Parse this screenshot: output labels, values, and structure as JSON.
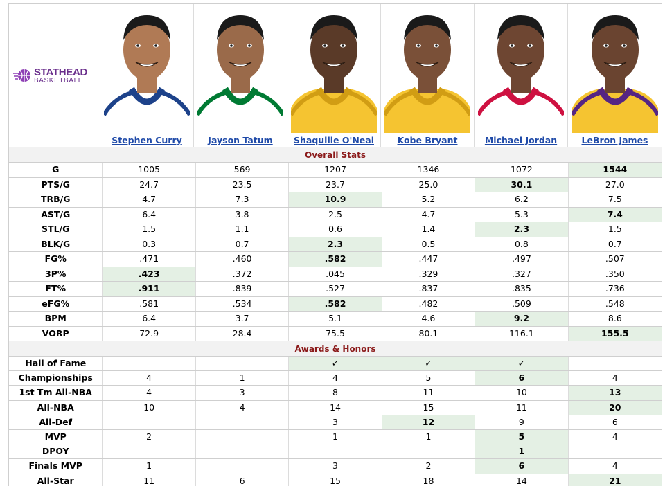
{
  "logo": {
    "top": "STATHEAD",
    "bottom": "BASKETBALL"
  },
  "players": [
    {
      "name": "Stephen Curry",
      "jersey": "#ffffff",
      "trim": "#1d428a",
      "skin": "#b07a55"
    },
    {
      "name": "Jayson Tatum",
      "jersey": "#ffffff",
      "trim": "#007a33",
      "skin": "#9a6a4a"
    },
    {
      "name": "Shaquille O'Neal",
      "jersey": "#f5c431",
      "trim": "#d19d14",
      "skin": "#5a3a28"
    },
    {
      "name": "Kobe Bryant",
      "jersey": "#f5c431",
      "trim": "#d19d14",
      "skin": "#7a5038"
    },
    {
      "name": "Michael Jordan",
      "jersey": "#ffffff",
      "trim": "#ce1141",
      "skin": "#6e4632"
    },
    {
      "name": "LeBron James",
      "jersey": "#f5c431",
      "trim": "#552583",
      "skin": "#6a4430"
    }
  ],
  "sections": [
    {
      "title": "Overall Stats",
      "rows": [
        {
          "label": "G",
          "values": [
            "1005",
            "569",
            "1207",
            "1346",
            "1072",
            "1544"
          ],
          "best": [
            5
          ]
        },
        {
          "label": "PTS/G",
          "values": [
            "24.7",
            "23.5",
            "23.7",
            "25.0",
            "30.1",
            "27.0"
          ],
          "best": [
            4
          ]
        },
        {
          "label": "TRB/G",
          "values": [
            "4.7",
            "7.3",
            "10.9",
            "5.2",
            "6.2",
            "7.5"
          ],
          "best": [
            2
          ]
        },
        {
          "label": "AST/G",
          "values": [
            "6.4",
            "3.8",
            "2.5",
            "4.7",
            "5.3",
            "7.4"
          ],
          "best": [
            5
          ]
        },
        {
          "label": "STL/G",
          "values": [
            "1.5",
            "1.1",
            "0.6",
            "1.4",
            "2.3",
            "1.5"
          ],
          "best": [
            4
          ]
        },
        {
          "label": "BLK/G",
          "values": [
            "0.3",
            "0.7",
            "2.3",
            "0.5",
            "0.8",
            "0.7"
          ],
          "best": [
            2
          ]
        },
        {
          "label": "FG%",
          "values": [
            ".471",
            ".460",
            ".582",
            ".447",
            ".497",
            ".507"
          ],
          "best": [
            2
          ]
        },
        {
          "label": "3P%",
          "values": [
            ".423",
            ".372",
            ".045",
            ".329",
            ".327",
            ".350"
          ],
          "best": [
            0
          ]
        },
        {
          "label": "FT%",
          "values": [
            ".911",
            ".839",
            ".527",
            ".837",
            ".835",
            ".736"
          ],
          "best": [
            0
          ]
        },
        {
          "label": "eFG%",
          "values": [
            ".581",
            ".534",
            ".582",
            ".482",
            ".509",
            ".548"
          ],
          "best": [
            2
          ]
        },
        {
          "label": "BPM",
          "values": [
            "6.4",
            "3.7",
            "5.1",
            "4.6",
            "9.2",
            "8.6"
          ],
          "best": [
            4
          ]
        },
        {
          "label": "VORP",
          "values": [
            "72.9",
            "28.4",
            "75.5",
            "80.1",
            "116.1",
            "155.5"
          ],
          "best": [
            5
          ]
        }
      ]
    },
    {
      "title": "Awards & Honors",
      "rows": [
        {
          "label": "Hall of Fame",
          "values": [
            "",
            "",
            "✓",
            "✓",
            "✓",
            ""
          ],
          "best": [
            2,
            3,
            4
          ]
        },
        {
          "label": "Championships",
          "values": [
            "4",
            "1",
            "4",
            "5",
            "6",
            "4"
          ],
          "best": [
            4
          ]
        },
        {
          "label": "1st Tm All-NBA",
          "values": [
            "4",
            "3",
            "8",
            "11",
            "10",
            "13"
          ],
          "best": [
            5
          ]
        },
        {
          "label": "All-NBA",
          "values": [
            "10",
            "4",
            "14",
            "15",
            "11",
            "20"
          ],
          "best": [
            5
          ]
        },
        {
          "label": "All-Def",
          "values": [
            "",
            "",
            "3",
            "12",
            "9",
            "6"
          ],
          "best": [
            3
          ]
        },
        {
          "label": "MVP",
          "values": [
            "2",
            "",
            "1",
            "1",
            "5",
            "4"
          ],
          "best": [
            4
          ]
        },
        {
          "label": "DPOY",
          "values": [
            "",
            "",
            "",
            "",
            "1",
            ""
          ],
          "best": [
            4
          ]
        },
        {
          "label": "Finals MVP",
          "values": [
            "1",
            "",
            "3",
            "2",
            "6",
            "4"
          ],
          "best": [
            4
          ]
        },
        {
          "label": "All-Star",
          "values": [
            "11",
            "6",
            "15",
            "18",
            "14",
            "21"
          ],
          "best": [
            5
          ]
        }
      ]
    }
  ]
}
